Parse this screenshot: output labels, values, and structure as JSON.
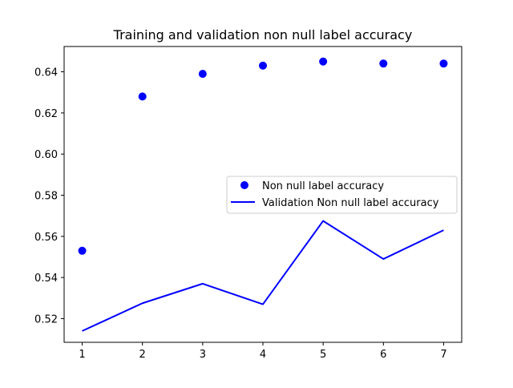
{
  "chart_data": {
    "type": "line",
    "title": "Training and validation non null label accuracy",
    "xlabel": "",
    "ylabel": "",
    "x": [
      1,
      2,
      3,
      4,
      5,
      6,
      7
    ],
    "xlim": [
      0.7,
      7.3
    ],
    "ylim": [
      0.5085,
      0.6523
    ],
    "xticks": [
      1,
      2,
      3,
      4,
      5,
      6,
      7
    ],
    "xtick_labels": [
      "1",
      "2",
      "3",
      "4",
      "5",
      "6",
      "7"
    ],
    "yticks": [
      0.52,
      0.54,
      0.56,
      0.58,
      0.6,
      0.62,
      0.64
    ],
    "ytick_labels": [
      "0.52",
      "0.54",
      "0.56",
      "0.58",
      "0.60",
      "0.62",
      "0.64"
    ],
    "grid": false,
    "legend_position": "center-right",
    "series": [
      {
        "name": "Non null label accuracy",
        "style": "markers",
        "color": "#0000ff",
        "values": [
          0.553,
          0.628,
          0.639,
          0.643,
          0.645,
          0.644,
          0.644
        ]
      },
      {
        "name": "Validation Non null label accuracy",
        "style": "line",
        "color": "#0000ff",
        "values": [
          0.514,
          0.5275,
          0.537,
          0.527,
          0.5675,
          0.549,
          0.563
        ]
      }
    ]
  }
}
